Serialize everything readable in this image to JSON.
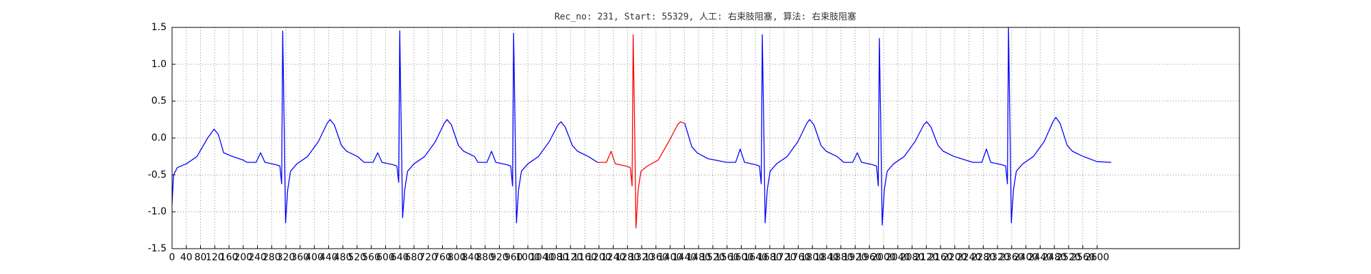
{
  "chart_data": {
    "type": "line",
    "title": "Rec_no: 231, Start: 55329, 人工: 右束肢阻塞, 算法: 右束肢阻塞",
    "xlim": [
      0,
      3000
    ],
    "ylim": [
      -1.5,
      1.5
    ],
    "xticks": [
      0,
      40,
      80,
      120,
      160,
      200,
      240,
      280,
      320,
      360,
      400,
      440,
      480,
      520,
      560,
      600,
      640,
      680,
      720,
      760,
      800,
      840,
      880,
      920,
      960,
      1000,
      1040,
      1080,
      1120,
      1160,
      1200,
      1240,
      1280,
      1320,
      1360,
      1400,
      1440,
      1480,
      1520,
      1560,
      1600,
      1640,
      1680,
      1720,
      1760,
      1800,
      1840,
      1880,
      1920,
      1960,
      2000,
      2040,
      2080,
      2120,
      2160,
      2200,
      2240,
      2280,
      2320,
      2360,
      2400,
      2440,
      2480,
      2520,
      2560,
      2600
    ],
    "yticks": [
      -1.5,
      {
        "value": -1,
        "label": "-1.0"
      },
      -0.5,
      {
        "value": 0,
        "label": "0.0"
      },
      0.5,
      {
        "value": 1,
        "label": "1.0"
      },
      1.5
    ],
    "grid": true,
    "series": [
      {
        "color": "#0000ff",
        "x": [
          0,
          4,
          15,
          40,
          70,
          100,
          118,
          130,
          145,
          170,
          200,
          211,
          236,
          249,
          261,
          291,
          303,
          308,
          311,
          315,
          319,
          325,
          333,
          351,
          381,
          411,
          436,
          444,
          456,
          476,
          491,
          521,
          540,
          565,
          578,
          590,
          620,
          632,
          637,
          640,
          644,
          648,
          654,
          662,
          680,
          710,
          740,
          765,
          773,
          785,
          805,
          820,
          850,
          860,
          885,
          898,
          910,
          940,
          952,
          957,
          960,
          964,
          968,
          974,
          982,
          1000,
          1030,
          1060,
          1085,
          1093,
          1105,
          1125,
          1140,
          1170,
          1196,
          1221,
          1234,
          1246,
          1276,
          1288,
          1293,
          1296,
          1300,
          1304,
          1310,
          1318,
          1336,
          1366,
          1396,
          1421,
          1429,
          1441,
          1461,
          1476,
          1506,
          1559,
          1584,
          1597,
          1609,
          1639,
          1651,
          1656,
          1659,
          1663,
          1667,
          1673,
          1681,
          1699,
          1729,
          1759,
          1784,
          1792,
          1804,
          1824,
          1839,
          1869,
          1888,
          1913,
          1926,
          1938,
          1968,
          1980,
          1985,
          1988,
          1992,
          1996,
          2002,
          2010,
          2028,
          2058,
          2088,
          2113,
          2121,
          2133,
          2153,
          2168,
          2198,
          2251,
          2276,
          2289,
          2301,
          2331,
          2343,
          2348,
          2351,
          2355,
          2359,
          2365,
          2373,
          2391,
          2421,
          2451,
          2476,
          2484,
          2496,
          2516,
          2531,
          2561,
          2600,
          2640
        ],
        "values": [
          -0.9,
          -0.5,
          -0.4,
          -0.35,
          -0.25,
          0.0,
          0.12,
          0.05,
          -0.2,
          -0.25,
          -0.3,
          -0.33,
          -0.33,
          -0.2,
          -0.33,
          -0.36,
          -0.38,
          -0.62,
          1.45,
          0.2,
          -1.15,
          -0.7,
          -0.45,
          -0.35,
          -0.25,
          -0.05,
          0.2,
          0.25,
          0.18,
          -0.1,
          -0.18,
          -0.25,
          -0.33,
          -0.33,
          -0.2,
          -0.33,
          -0.36,
          -0.38,
          -0.6,
          1.45,
          0.2,
          -1.08,
          -0.7,
          -0.45,
          -0.35,
          -0.25,
          -0.05,
          0.2,
          0.25,
          0.18,
          -0.1,
          -0.18,
          -0.25,
          -0.33,
          -0.33,
          -0.18,
          -0.33,
          -0.36,
          -0.38,
          -0.65,
          1.42,
          0.2,
          -1.15,
          -0.7,
          -0.45,
          -0.35,
          -0.25,
          -0.05,
          0.18,
          0.22,
          0.15,
          -0.1,
          -0.18,
          -0.25,
          -0.33,
          null,
          null,
          null,
          null,
          null,
          null,
          null,
          null,
          null,
          null,
          null,
          null,
          null,
          null,
          null,
          null,
          0.2,
          -0.12,
          -0.2,
          -0.28,
          -0.33,
          -0.33,
          -0.15,
          -0.33,
          -0.36,
          -0.38,
          -0.62,
          1.4,
          0.2,
          -1.15,
          -0.7,
          -0.45,
          -0.35,
          -0.25,
          -0.05,
          0.2,
          0.25,
          0.18,
          -0.1,
          -0.18,
          -0.25,
          -0.33,
          -0.33,
          -0.2,
          -0.33,
          -0.36,
          -0.38,
          -0.65,
          1.35,
          0.2,
          -1.18,
          -0.7,
          -0.45,
          -0.35,
          -0.25,
          -0.05,
          0.18,
          0.22,
          0.15,
          -0.1,
          -0.18,
          -0.25,
          -0.33,
          -0.33,
          -0.15,
          -0.33,
          -0.36,
          -0.38,
          -0.62,
          1.5,
          0.2,
          -1.15,
          -0.7,
          -0.45,
          -0.35,
          -0.25,
          -0.05,
          0.22,
          0.28,
          0.2,
          -0.1,
          -0.18,
          -0.25,
          -0.32,
          -0.33
        ]
      },
      {
        "color": "#ff0000",
        "x": [
          1196,
          1221,
          1234,
          1246,
          1276,
          1288,
          1293,
          1296,
          1300,
          1304,
          1310,
          1318,
          1336,
          1366,
          1396,
          1421,
          1429,
          1441
        ],
        "values": [
          -0.33,
          -0.33,
          -0.18,
          -0.35,
          -0.38,
          -0.4,
          -0.65,
          1.4,
          0.2,
          -1.22,
          -0.7,
          -0.45,
          -0.38,
          -0.3,
          -0.05,
          0.18,
          0.22,
          0.2
        ]
      }
    ]
  }
}
